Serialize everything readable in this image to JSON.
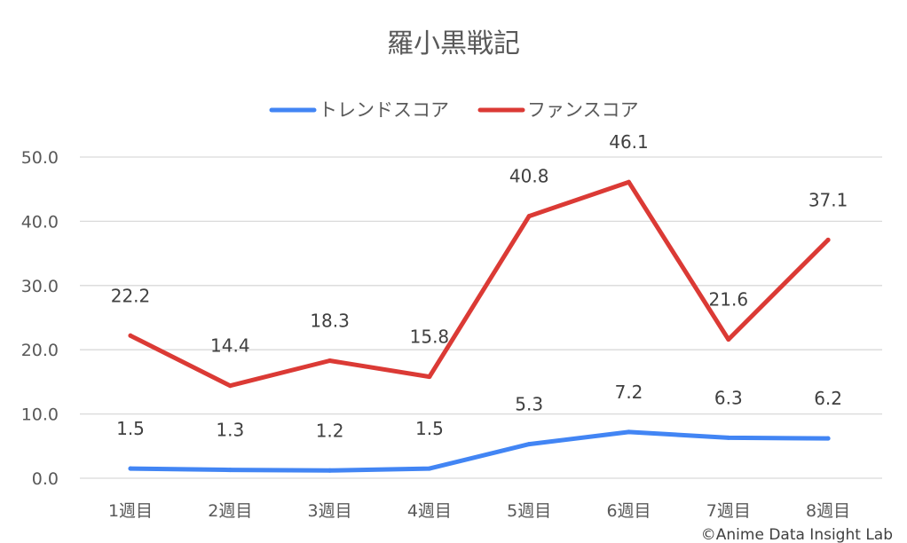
{
  "chart_data": {
    "type": "line",
    "title": "羅小黒戦記",
    "categories": [
      "1週目",
      "2週目",
      "3週目",
      "4週目",
      "5週目",
      "6週目",
      "7週目",
      "8週目"
    ],
    "series": [
      {
        "name": "トレンドスコア",
        "color": "#4285f4",
        "values": [
          1.5,
          1.3,
          1.2,
          1.5,
          5.3,
          7.2,
          6.3,
          6.2
        ]
      },
      {
        "name": "ファンスコア",
        "color": "#db3a35",
        "values": [
          22.2,
          14.4,
          18.3,
          15.8,
          40.8,
          46.1,
          21.6,
          37.1
        ]
      }
    ],
    "ylim": [
      0,
      50
    ],
    "yticks": [
      "0.0",
      "10.0",
      "20.0",
      "30.0",
      "40.0",
      "50.0"
    ],
    "grid": true,
    "legend_position": "top",
    "data_labels": true
  },
  "credit": "©Anime Data Insight Lab"
}
